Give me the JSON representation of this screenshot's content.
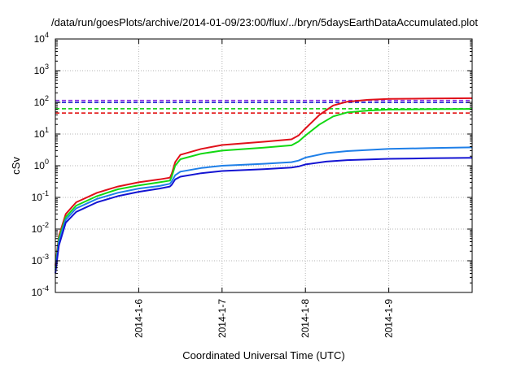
{
  "chart_data": {
    "type": "line",
    "title": "/data/run/goesPlots/archive/2014-01-09/23:00/flux/../bryn/5daysEarthDataAccumulated.plot",
    "xlabel": "Coordinated Universal Time (UTC)",
    "ylabel": "cSv",
    "y_scale": "log",
    "ylim": [
      0.0001,
      10000
    ],
    "xlim": [
      "2014-01-05 00:00",
      "2014-01-10 00:00"
    ],
    "x_ticks": [
      {
        "date": "2014-01-06 00:00",
        "label": "2014-1-6"
      },
      {
        "date": "2014-01-07 00:00",
        "label": "2014-1-7"
      },
      {
        "date": "2014-01-08 00:00",
        "label": "2014-1-8"
      },
      {
        "date": "2014-01-09 00:00",
        "label": "2014-1-9"
      }
    ],
    "y_ticks": [
      {
        "value": 0.0001,
        "base": "10",
        "exp": "-4"
      },
      {
        "value": 0.001,
        "base": "10",
        "exp": "-3"
      },
      {
        "value": 0.01,
        "base": "10",
        "exp": "-2"
      },
      {
        "value": 0.1,
        "base": "10",
        "exp": "-1"
      },
      {
        "value": 1,
        "base": "10",
        "exp": "0"
      },
      {
        "value": 10,
        "base": "10",
        "exp": "1"
      },
      {
        "value": 100,
        "base": "10",
        "exp": "2"
      },
      {
        "value": 1000,
        "base": "10",
        "exp": "3"
      },
      {
        "value": 10000,
        "base": "10",
        "exp": "4"
      }
    ],
    "grid": true,
    "legend": "none",
    "series": [
      {
        "color": "#e0101a",
        "style": "solid",
        "points": [
          [
            "2014-01-05 00:00",
            0.0007
          ],
          [
            "2014-01-05 01:00",
            0.006
          ],
          [
            "2014-01-05 03:00",
            0.03
          ],
          [
            "2014-01-05 06:00",
            0.07
          ],
          [
            "2014-01-05 12:00",
            0.14
          ],
          [
            "2014-01-05 18:00",
            0.22
          ],
          [
            "2014-01-06 00:00",
            0.3
          ],
          [
            "2014-01-06 06:00",
            0.37
          ],
          [
            "2014-01-06 09:00",
            0.42
          ],
          [
            "2014-01-06 09:30",
            0.55
          ],
          [
            "2014-01-06 10:30",
            1.3
          ],
          [
            "2014-01-06 12:00",
            2.2
          ],
          [
            "2014-01-06 18:00",
            3.4
          ],
          [
            "2014-01-07 00:00",
            4.5
          ],
          [
            "2014-01-07 12:00",
            5.7
          ],
          [
            "2014-01-07 20:00",
            6.8
          ],
          [
            "2014-01-07 22:00",
            9
          ],
          [
            "2014-01-08 00:00",
            15
          ],
          [
            "2014-01-08 04:00",
            40
          ],
          [
            "2014-01-08 08:00",
            80
          ],
          [
            "2014-01-08 12:00",
            105
          ],
          [
            "2014-01-08 18:00",
            120
          ],
          [
            "2014-01-09 00:00",
            128
          ],
          [
            "2014-01-09 12:00",
            132
          ],
          [
            "2014-01-10 00:00",
            135
          ]
        ]
      },
      {
        "color": "#12d812",
        "style": "solid",
        "points": [
          [
            "2014-01-05 00:00",
            0.0006
          ],
          [
            "2014-01-05 01:00",
            0.005
          ],
          [
            "2014-01-05 03:00",
            0.024
          ],
          [
            "2014-01-05 06:00",
            0.055
          ],
          [
            "2014-01-05 12:00",
            0.11
          ],
          [
            "2014-01-05 18:00",
            0.18
          ],
          [
            "2014-01-06 00:00",
            0.24
          ],
          [
            "2014-01-06 06:00",
            0.3
          ],
          [
            "2014-01-06 09:00",
            0.34
          ],
          [
            "2014-01-06 09:30",
            0.45
          ],
          [
            "2014-01-06 10:30",
            1.0
          ],
          [
            "2014-01-06 12:00",
            1.6
          ],
          [
            "2014-01-06 18:00",
            2.4
          ],
          [
            "2014-01-07 00:00",
            3.0
          ],
          [
            "2014-01-07 12:00",
            3.7
          ],
          [
            "2014-01-07 20:00",
            4.4
          ],
          [
            "2014-01-07 22:00",
            5.8
          ],
          [
            "2014-01-08 00:00",
            9
          ],
          [
            "2014-01-08 04:00",
            20
          ],
          [
            "2014-01-08 08:00",
            36
          ],
          [
            "2014-01-08 12:00",
            48
          ],
          [
            "2014-01-08 18:00",
            55
          ],
          [
            "2014-01-09 00:00",
            59
          ],
          [
            "2014-01-09 12:00",
            61
          ],
          [
            "2014-01-10 00:00",
            62
          ]
        ]
      },
      {
        "color": "#1e7fe8",
        "style": "solid",
        "points": [
          [
            "2014-01-05 00:00",
            0.0005
          ],
          [
            "2014-01-05 01:00",
            0.004
          ],
          [
            "2014-01-05 03:00",
            0.02
          ],
          [
            "2014-01-05 06:00",
            0.045
          ],
          [
            "2014-01-05 12:00",
            0.09
          ],
          [
            "2014-01-05 18:00",
            0.14
          ],
          [
            "2014-01-06 00:00",
            0.19
          ],
          [
            "2014-01-06 06:00",
            0.23
          ],
          [
            "2014-01-06 09:00",
            0.27
          ],
          [
            "2014-01-06 09:30",
            0.32
          ],
          [
            "2014-01-06 10:30",
            0.5
          ],
          [
            "2014-01-06 12:00",
            0.65
          ],
          [
            "2014-01-06 18:00",
            0.85
          ],
          [
            "2014-01-07 00:00",
            1.0
          ],
          [
            "2014-01-07 12:00",
            1.15
          ],
          [
            "2014-01-07 20:00",
            1.3
          ],
          [
            "2014-01-07 22:00",
            1.45
          ],
          [
            "2014-01-08 00:00",
            1.8
          ],
          [
            "2014-01-08 06:00",
            2.5
          ],
          [
            "2014-01-08 12:00",
            2.9
          ],
          [
            "2014-01-09 00:00",
            3.4
          ],
          [
            "2014-01-09 12:00",
            3.6
          ],
          [
            "2014-01-10 00:00",
            3.8
          ]
        ]
      },
      {
        "color": "#1414d2",
        "style": "solid",
        "points": [
          [
            "2014-01-05 00:00",
            0.0004
          ],
          [
            "2014-01-05 01:00",
            0.003
          ],
          [
            "2014-01-05 03:00",
            0.016
          ],
          [
            "2014-01-05 06:00",
            0.035
          ],
          [
            "2014-01-05 12:00",
            0.07
          ],
          [
            "2014-01-05 18:00",
            0.11
          ],
          [
            "2014-01-06 00:00",
            0.15
          ],
          [
            "2014-01-06 06:00",
            0.19
          ],
          [
            "2014-01-06 09:00",
            0.22
          ],
          [
            "2014-01-06 09:30",
            0.25
          ],
          [
            "2014-01-06 10:30",
            0.37
          ],
          [
            "2014-01-06 12:00",
            0.45
          ],
          [
            "2014-01-06 18:00",
            0.58
          ],
          [
            "2014-01-07 00:00",
            0.68
          ],
          [
            "2014-01-07 12:00",
            0.78
          ],
          [
            "2014-01-07 20:00",
            0.88
          ],
          [
            "2014-01-07 22:00",
            0.95
          ],
          [
            "2014-01-08 00:00",
            1.1
          ],
          [
            "2014-01-08 06:00",
            1.35
          ],
          [
            "2014-01-08 12:00",
            1.5
          ],
          [
            "2014-01-09 00:00",
            1.65
          ],
          [
            "2014-01-09 12:00",
            1.72
          ],
          [
            "2014-01-10 00:00",
            1.78
          ]
        ]
      }
    ],
    "reference_lines": [
      {
        "value": 115,
        "color": "#8a2be2",
        "style": "dashed"
      },
      {
        "value": 100,
        "color": "#0000cc",
        "style": "dashed"
      },
      {
        "value": 63,
        "color": "#00cc00",
        "style": "dashed"
      },
      {
        "value": 46,
        "color": "#e00000",
        "style": "dashed"
      }
    ]
  }
}
